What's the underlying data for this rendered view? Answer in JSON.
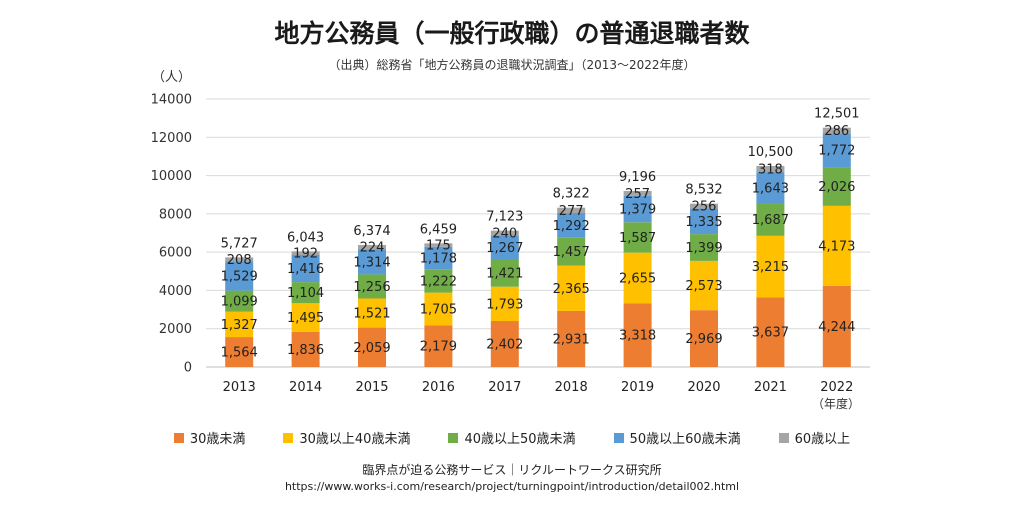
{
  "title": "地方公務員（一般行政職）の普通退職者数",
  "subtitle": "（出典）総務省「地方公務員の退職状況調査」（2013〜2022年度）",
  "y_unit": "（人）",
  "x_unit": "（年度）",
  "footer": {
    "credit": "臨界点が迫る公務サービス｜リクルートワークス研究所",
    "url": "https://www.works-i.com/research/project/turningpoint/introduction/detail002.html"
  },
  "chart_data": {
    "type": "bar",
    "stacked": true,
    "categories": [
      "2013",
      "2014",
      "2015",
      "2016",
      "2017",
      "2018",
      "2019",
      "2020",
      "2021",
      "2022"
    ],
    "y_ticks": [
      "0",
      "2000",
      "4000",
      "6000",
      "8000",
      "10000",
      "12000",
      "14000"
    ],
    "ylim": [
      0,
      14000
    ],
    "grid": true,
    "legend_position": "bottom",
    "series": [
      {
        "name": "30歳未満",
        "color": "#ED7D31",
        "values": [
          1564,
          1836,
          2059,
          2179,
          2402,
          2931,
          3318,
          2969,
          3637,
          4244
        ],
        "labels": [
          "1,564",
          "1,836",
          "2,059",
          "2,179",
          "2,402",
          "2,931",
          "3,318",
          "2,969",
          "3,637",
          "4,244"
        ]
      },
      {
        "name": "30歳以上40歳未満",
        "color": "#FFC000",
        "values": [
          1327,
          1495,
          1521,
          1705,
          1793,
          2365,
          2655,
          2573,
          3215,
          4173
        ],
        "labels": [
          "1,327",
          "1,495",
          "1,521",
          "1,705",
          "1,793",
          "2,365",
          "2,655",
          "2,573",
          "3,215",
          "4,173"
        ]
      },
      {
        "name": "40歳以上50歳未満",
        "color": "#70AD47",
        "values": [
          1099,
          1104,
          1256,
          1222,
          1421,
          1457,
          1587,
          1399,
          1687,
          2026
        ],
        "labels": [
          "1,099",
          "1,104",
          "1,256",
          "1,222",
          "1,421",
          "1,457",
          "1,587",
          "1,399",
          "1,687",
          "2,026"
        ]
      },
      {
        "name": "50歳以上60歳未満",
        "color": "#5B9BD5",
        "values": [
          1529,
          1416,
          1314,
          1178,
          1267,
          1292,
          1379,
          1335,
          1643,
          1772
        ],
        "labels": [
          "1,529",
          "1,416",
          "1,314",
          "1,178",
          "1,267",
          "1,292",
          "1,379",
          "1,335",
          "1,643",
          "1,772"
        ]
      },
      {
        "name": "60歳以上",
        "color": "#A5A5A5",
        "values": [
          208,
          192,
          224,
          175,
          240,
          277,
          257,
          256,
          318,
          286
        ],
        "labels": [
          "208",
          "192",
          "224",
          "175",
          "240",
          "277",
          "257",
          "256",
          "318",
          "286"
        ]
      }
    ],
    "totals": [
      "5,727",
      "6,043",
      "6,374",
      "6,459",
      "7,123",
      "8,322",
      "9,196",
      "8,532",
      "10,500",
      "12,501"
    ]
  }
}
